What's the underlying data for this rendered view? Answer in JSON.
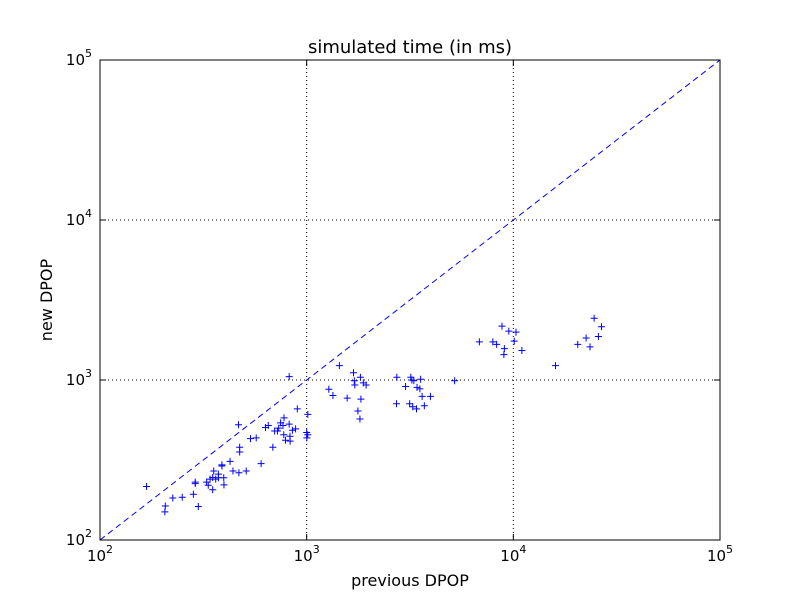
{
  "chart_data": {
    "type": "scatter",
    "title": "simulated time (in ms)",
    "xlabel": "previous DPOP",
    "ylabel": "new DPOP",
    "xscale": "log",
    "yscale": "log",
    "xlim": [
      100,
      100000
    ],
    "ylim": [
      100,
      100000
    ],
    "grid": true,
    "marker": "+",
    "marker_color": "#0000ff",
    "reference_line": {
      "style": "dashed",
      "color": "#0000ff",
      "x": [
        100,
        100000
      ],
      "y": [
        100,
        100000
      ]
    },
    "x_ticks": [
      {
        "value": 100,
        "base": "10",
        "exp": "2"
      },
      {
        "value": 1000,
        "base": "10",
        "exp": "3"
      },
      {
        "value": 10000,
        "base": "10",
        "exp": "4"
      },
      {
        "value": 100000,
        "base": "10",
        "exp": "5"
      }
    ],
    "y_ticks": [
      {
        "value": 100,
        "base": "10",
        "exp": "2"
      },
      {
        "value": 1000,
        "base": "10",
        "exp": "3"
      },
      {
        "value": 10000,
        "base": "10",
        "exp": "4"
      },
      {
        "value": 100000,
        "base": "10",
        "exp": "5"
      }
    ],
    "points": [
      [
        168,
        216
      ],
      [
        206,
        150
      ],
      [
        207,
        163
      ],
      [
        225,
        183
      ],
      [
        250,
        185
      ],
      [
        283,
        193
      ],
      [
        289,
        230
      ],
      [
        289,
        225
      ],
      [
        299,
        162
      ],
      [
        328,
        230
      ],
      [
        334,
        220
      ],
      [
        341,
        240
      ],
      [
        351,
        206
      ],
      [
        351,
        246
      ],
      [
        355,
        270
      ],
      [
        363,
        240
      ],
      [
        374,
        245
      ],
      [
        374,
        258
      ],
      [
        389,
        290
      ],
      [
        389,
        295
      ],
      [
        398,
        221
      ],
      [
        397,
        245
      ],
      [
        426,
        310
      ],
      [
        440,
        270
      ],
      [
        468,
        525
      ],
      [
        470,
        263
      ],
      [
        474,
        380
      ],
      [
        474,
        355
      ],
      [
        510,
        270
      ],
      [
        535,
        430
      ],
      [
        570,
        435
      ],
      [
        602,
        300
      ],
      [
        632,
        505
      ],
      [
        652,
        520
      ],
      [
        686,
        380
      ],
      [
        700,
        480
      ],
      [
        722,
        480
      ],
      [
        732,
        500
      ],
      [
        748,
        540
      ],
      [
        768,
        520
      ],
      [
        777,
        580
      ],
      [
        775,
        455
      ],
      [
        790,
        420
      ],
      [
        823,
        530
      ],
      [
        823,
        1050
      ],
      [
        830,
        445
      ],
      [
        832,
        415
      ],
      [
        853,
        485
      ],
      [
        884,
        495
      ],
      [
        901,
        660
      ],
      [
        1000,
        470
      ],
      [
        1002,
        435
      ],
      [
        1012,
        455
      ],
      [
        1013,
        610
      ],
      [
        1280,
        875
      ],
      [
        1340,
        800
      ],
      [
        1440,
        1230
      ],
      [
        1570,
        770
      ],
      [
        1685,
        1110
      ],
      [
        1700,
        990
      ],
      [
        1710,
        930
      ],
      [
        1770,
        640
      ],
      [
        1810,
        570
      ],
      [
        1820,
        1040
      ],
      [
        1830,
        760
      ],
      [
        1880,
        960
      ],
      [
        1940,
        930
      ],
      [
        2720,
        710
      ],
      [
        2730,
        1040
      ],
      [
        3010,
        910
      ],
      [
        3150,
        710
      ],
      [
        3190,
        1040
      ],
      [
        3230,
        1000
      ],
      [
        3260,
        680
      ],
      [
        3300,
        990
      ],
      [
        3400,
        660
      ],
      [
        3420,
        900
      ],
      [
        3530,
        880
      ],
      [
        3560,
        1010
      ],
      [
        3620,
        790
      ],
      [
        3710,
        690
      ],
      [
        3970,
        790
      ],
      [
        5200,
        990
      ],
      [
        6850,
        1730
      ],
      [
        7960,
        1730
      ],
      [
        8300,
        1670
      ],
      [
        8810,
        2170
      ],
      [
        9000,
        1440
      ],
      [
        9050,
        1570
      ],
      [
        9510,
        2020
      ],
      [
        10100,
        1750
      ],
      [
        10300,
        1990
      ],
      [
        11000,
        1530
      ],
      [
        16000,
        1230
      ],
      [
        20500,
        1670
      ],
      [
        22500,
        1830
      ],
      [
        23500,
        1610
      ],
      [
        24600,
        2430
      ],
      [
        25800,
        1870
      ],
      [
        26700,
        2150
      ]
    ]
  }
}
